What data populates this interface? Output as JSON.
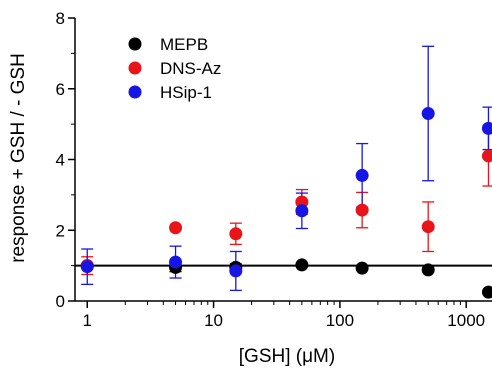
{
  "chart_data": {
    "type": "scatter",
    "title": "",
    "xlabel": "[GSH] (μM)",
    "ylabel": "response + GSH / - GSH",
    "xscale": "log",
    "xlim": [
      0.8,
      1600
    ],
    "ylim": [
      0,
      8
    ],
    "x_ticks": [
      {
        "value": 1,
        "label": "1"
      },
      {
        "value": 10,
        "label": "10"
      },
      {
        "value": 100,
        "label": "100"
      },
      {
        "value": 1000,
        "label": "1000"
      }
    ],
    "y_ticks": [
      {
        "value": 0,
        "label": "0"
      },
      {
        "value": 2,
        "label": "2"
      },
      {
        "value": 4,
        "label": "4"
      },
      {
        "value": 6,
        "label": "6"
      },
      {
        "value": 8,
        "label": "8"
      }
    ],
    "grid": false,
    "legend_position": "top-left",
    "reference_line": {
      "y": 1,
      "color": "#000000"
    },
    "series": [
      {
        "name": "MEPB",
        "color": "#000000",
        "points": [
          {
            "x": 1,
            "y": 1.0,
            "err": 0.05
          },
          {
            "x": 5,
            "y": 0.95,
            "err": 0.12
          },
          {
            "x": 15,
            "y": 0.95,
            "err": 0.1
          },
          {
            "x": 50,
            "y": 1.02,
            "err": 0.05
          },
          {
            "x": 150,
            "y": 0.93,
            "err": 0.05
          },
          {
            "x": 500,
            "y": 0.88,
            "err": 0.05
          },
          {
            "x": 1500,
            "y": 0.25,
            "err": 0.05
          }
        ]
      },
      {
        "name": "DNS-Az",
        "color": "#e8141a",
        "points": [
          {
            "x": 1,
            "y": 1.0,
            "err": 0.25
          },
          {
            "x": 5,
            "y": 2.07,
            "err": 0.05
          },
          {
            "x": 15,
            "y": 1.9,
            "err": 0.3
          },
          {
            "x": 50,
            "y": 2.8,
            "err": 0.35
          },
          {
            "x": 150,
            "y": 2.57,
            "err": 0.5
          },
          {
            "x": 500,
            "y": 2.1,
            "err": 0.7
          },
          {
            "x": 1500,
            "y": 4.1,
            "err": 0.85
          }
        ]
      },
      {
        "name": "HSip-1",
        "color": "#1515e6",
        "points": [
          {
            "x": 1,
            "y": 0.97,
            "err": 0.5
          },
          {
            "x": 5,
            "y": 1.1,
            "err": 0.45
          },
          {
            "x": 15,
            "y": 0.85,
            "err": 0.55
          },
          {
            "x": 50,
            "y": 2.55,
            "err": 0.5
          },
          {
            "x": 150,
            "y": 3.55,
            "err": 0.9
          },
          {
            "x": 500,
            "y": 5.3,
            "err": 1.9
          },
          {
            "x": 1500,
            "y": 4.88,
            "err": 0.6
          }
        ]
      }
    ]
  }
}
